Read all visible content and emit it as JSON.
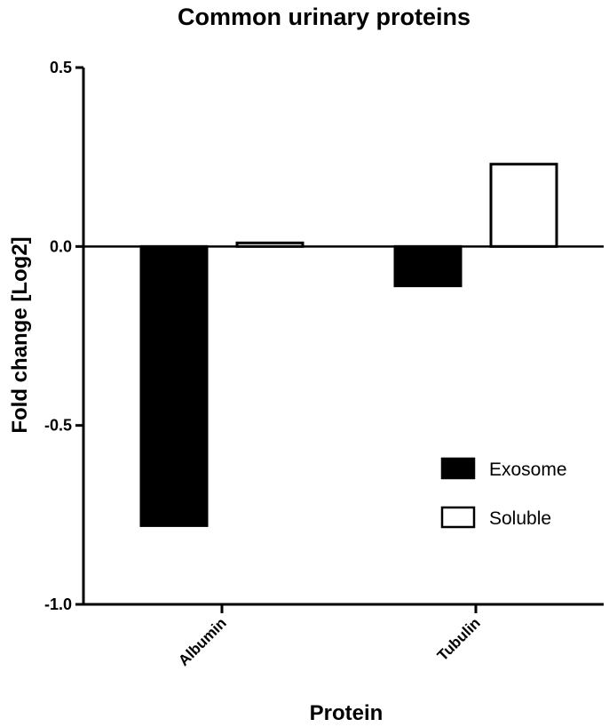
{
  "chart_data": {
    "type": "bar",
    "title": "Common urinary proteins",
    "xlabel": "Protein",
    "ylabel": "Fold change [Log2]",
    "categories": [
      "Albumin",
      "Tubulin"
    ],
    "series": [
      {
        "name": "Exosome",
        "values": [
          -0.78,
          -0.11
        ],
        "color": "#000000"
      },
      {
        "name": "Soluble",
        "values": [
          0.01,
          0.23
        ],
        "color": "#ffffff"
      }
    ],
    "ylim": [
      -1.0,
      0.5
    ],
    "yticks": [
      "0.5",
      "0.0",
      "-0.5",
      "-1.0"
    ],
    "ytick_values": [
      0.5,
      0.0,
      -0.5,
      -1.0
    ],
    "grid": false,
    "legend_position": "bottom-right"
  }
}
